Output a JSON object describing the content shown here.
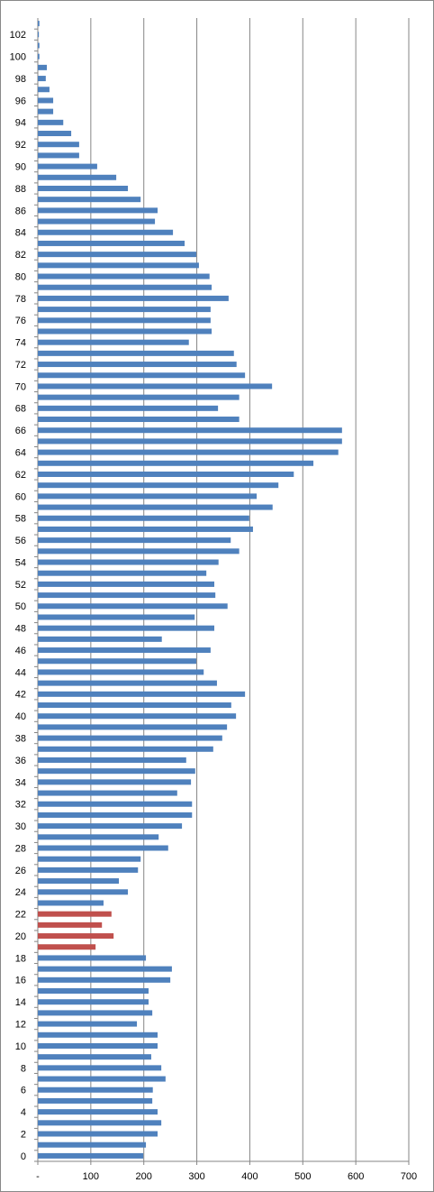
{
  "chart_data": {
    "type": "bar",
    "orientation": "horizontal",
    "categories": [
      "0",
      null,
      "2",
      null,
      "4",
      null,
      "6",
      null,
      "8",
      null,
      "10",
      null,
      "12",
      null,
      "14",
      null,
      "16",
      null,
      "18",
      null,
      "20",
      null,
      "22",
      null,
      "24",
      null,
      "26",
      null,
      "28",
      null,
      "30",
      null,
      "32",
      null,
      "34",
      null,
      "36",
      null,
      "38",
      null,
      "40",
      null,
      "42",
      null,
      "44",
      null,
      "46",
      null,
      "48",
      null,
      "50",
      null,
      "52",
      null,
      "54",
      null,
      "56",
      null,
      "58",
      null,
      "60",
      null,
      "62",
      null,
      "64",
      null,
      "66",
      null,
      "68",
      null,
      "70",
      null,
      "72",
      null,
      "74",
      null,
      "76",
      null,
      "78",
      null,
      "80",
      null,
      "82",
      null,
      "84",
      null,
      "86",
      null,
      "88",
      null,
      "90",
      null,
      "92",
      null,
      "94",
      null,
      "96",
      null,
      "98",
      null,
      "100",
      null,
      "102",
      null
    ],
    "values": [
      199,
      204,
      226,
      233,
      226,
      216,
      217,
      241,
      233,
      214,
      226,
      226,
      187,
      216,
      209,
      209,
      250,
      253,
      204,
      109,
      143,
      121,
      139,
      124,
      170,
      153,
      189,
      194,
      246,
      228,
      272,
      291,
      291,
      263,
      289,
      297,
      280,
      331,
      348,
      357,
      374,
      365,
      391,
      338,
      313,
      299,
      326,
      234,
      333,
      296,
      358,
      335,
      333,
      318,
      341,
      380,
      364,
      406,
      399,
      443,
      413,
      454,
      483,
      520,
      567,
      574,
      574,
      380,
      340,
      380,
      442,
      391,
      375,
      370,
      285,
      328,
      326,
      326,
      360,
      328,
      324,
      304,
      299,
      277,
      255,
      221,
      226,
      194,
      170,
      148,
      112,
      78,
      78,
      63,
      48,
      29,
      29,
      22,
      15,
      17,
      3,
      3,
      2,
      3
    ],
    "colors": [
      "#4f81bd",
      "#4f81bd",
      "#4f81bd",
      "#4f81bd",
      "#4f81bd",
      "#4f81bd",
      "#4f81bd",
      "#4f81bd",
      "#4f81bd",
      "#4f81bd",
      "#4f81bd",
      "#4f81bd",
      "#4f81bd",
      "#4f81bd",
      "#4f81bd",
      "#4f81bd",
      "#4f81bd",
      "#4f81bd",
      "#4f81bd",
      "#c0504d",
      "#c0504d",
      "#c0504d",
      "#c0504d",
      "#4f81bd",
      "#4f81bd",
      "#4f81bd",
      "#4f81bd",
      "#4f81bd",
      "#4f81bd",
      "#4f81bd",
      "#4f81bd",
      "#4f81bd",
      "#4f81bd",
      "#4f81bd",
      "#4f81bd",
      "#4f81bd",
      "#4f81bd",
      "#4f81bd",
      "#4f81bd",
      "#4f81bd",
      "#4f81bd",
      "#4f81bd",
      "#4f81bd",
      "#4f81bd",
      "#4f81bd",
      "#4f81bd",
      "#4f81bd",
      "#4f81bd",
      "#4f81bd",
      "#4f81bd",
      "#4f81bd",
      "#4f81bd",
      "#4f81bd",
      "#4f81bd",
      "#4f81bd",
      "#4f81bd",
      "#4f81bd",
      "#4f81bd",
      "#4f81bd",
      "#4f81bd",
      "#4f81bd",
      "#4f81bd",
      "#4f81bd",
      "#4f81bd",
      "#4f81bd",
      "#4f81bd",
      "#4f81bd",
      "#4f81bd",
      "#4f81bd",
      "#4f81bd",
      "#4f81bd",
      "#4f81bd",
      "#4f81bd",
      "#4f81bd",
      "#4f81bd",
      "#4f81bd",
      "#4f81bd",
      "#4f81bd",
      "#4f81bd",
      "#4f81bd",
      "#4f81bd",
      "#4f81bd",
      "#4f81bd",
      "#4f81bd",
      "#4f81bd",
      "#4f81bd",
      "#4f81bd",
      "#4f81bd",
      "#4f81bd",
      "#4f81bd",
      "#4f81bd",
      "#4f81bd",
      "#4f81bd",
      "#4f81bd",
      "#4f81bd",
      "#4f81bd",
      "#4f81bd",
      "#4f81bd",
      "#4f81bd",
      "#4f81bd",
      "#4f81bd",
      "#4f81bd",
      "#4f81bd",
      "#4f81bd"
    ],
    "xlim": [
      0,
      700
    ],
    "xticks": [
      {
        "value": 0,
        "label": "-"
      },
      100,
      200,
      300,
      400,
      500,
      600,
      700
    ],
    "grid": true
  }
}
